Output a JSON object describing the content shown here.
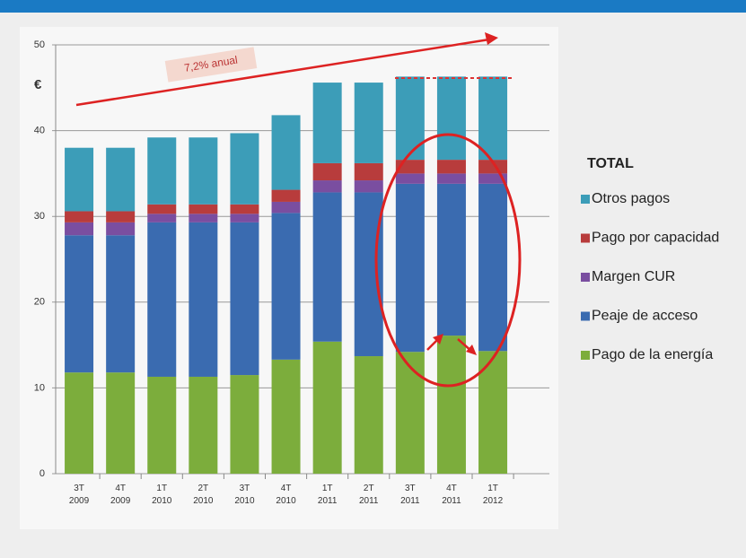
{
  "chart_data": {
    "type": "stacked_bar",
    "annotations": [
      "7,2% anual",
      "€"
    ],
    "legend_title": "TOTAL",
    "categories": [
      "3T 2009",
      "4T 2009",
      "1T 2010",
      "2T 2010",
      "3T 2010",
      "4T 2010",
      "1T 2011",
      "2T 2011",
      "3T 2011",
      "4T 2011",
      "1T 2012"
    ],
    "series": [
      {
        "name": "Pago de la energía",
        "color": "#7cad3c",
        "values": [
          11.8,
          11.8,
          11.3,
          11.3,
          11.5,
          13.3,
          15.4,
          13.7,
          14.2,
          16.1,
          14.3
        ]
      },
      {
        "name": "Peaje de acceso",
        "color": "#3a6bb0",
        "values": [
          16.0,
          16.0,
          18.0,
          18.0,
          17.8,
          17.1,
          17.4,
          19.1,
          19.6,
          17.7,
          19.5
        ]
      },
      {
        "name": "Margen CUR",
        "color": "#7a4ea0",
        "values": [
          1.5,
          1.5,
          1.0,
          1.0,
          1.0,
          1.3,
          1.4,
          1.4,
          1.2,
          1.2,
          1.2
        ]
      },
      {
        "name": "Pago por capacidad",
        "color": "#b83c3c",
        "values": [
          1.3,
          1.3,
          1.1,
          1.1,
          1.1,
          1.4,
          2.0,
          2.0,
          1.6,
          1.6,
          1.6
        ]
      },
      {
        "name": "Otros pagos",
        "color": "#3c9db8",
        "values": [
          7.4,
          7.4,
          7.8,
          7.8,
          8.3,
          8.7,
          9.4,
          9.4,
          9.7,
          9.7,
          9.7
        ]
      }
    ],
    "ylim": [
      0,
      50
    ],
    "yticks": [
      0,
      10,
      20,
      30,
      40,
      50
    ],
    "grid": true
  }
}
